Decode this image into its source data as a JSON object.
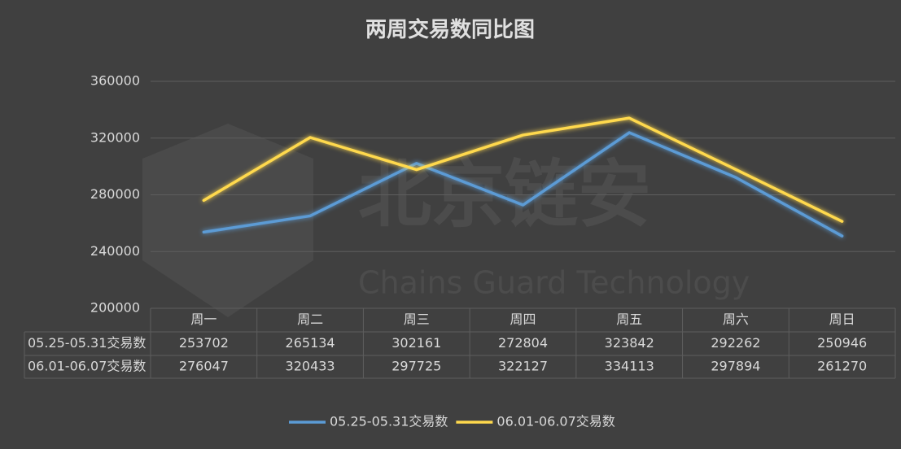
{
  "chart_data": {
    "type": "line",
    "title": "两周交易数同比图",
    "categories": [
      "周一",
      "周二",
      "周三",
      "周四",
      "周五",
      "周六",
      "周日"
    ],
    "series": [
      {
        "name": "05.25-05.31交易数",
        "color": "#5b9bd5",
        "values": [
          253702,
          265134,
          302161,
          272804,
          323842,
          292262,
          250946
        ]
      },
      {
        "name": "06.01-06.07交易数",
        "color": "#ffd94d",
        "values": [
          276047,
          320433,
          297725,
          322127,
          334113,
          297894,
          261270
        ]
      }
    ],
    "ylim": [
      200000,
      360000
    ],
    "yticks": [
      200000,
      240000,
      280000,
      320000,
      360000
    ],
    "grid": true,
    "legend": "bottom",
    "data_table": true,
    "annotations": [
      "北京链安",
      "Chains Guard Technology"
    ]
  }
}
